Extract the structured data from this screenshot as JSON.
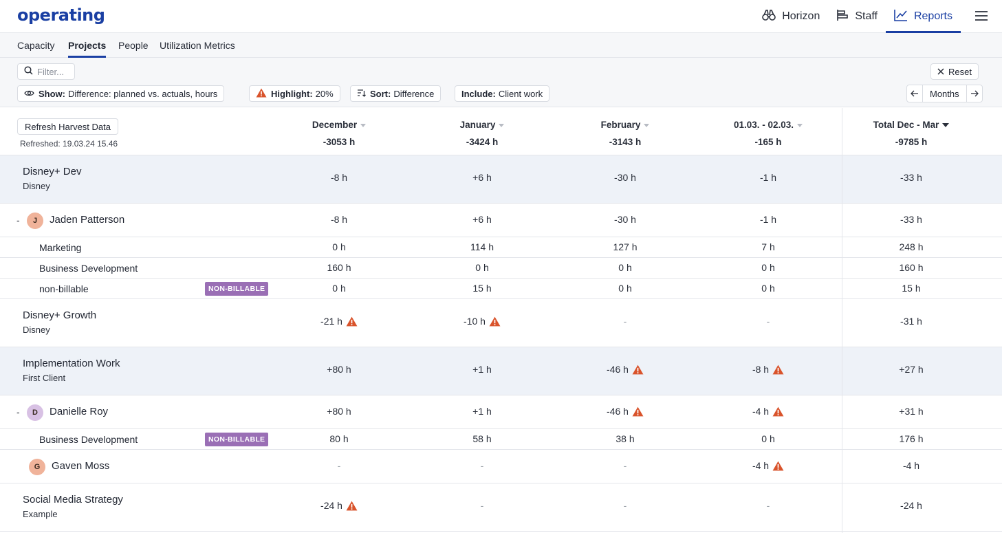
{
  "app": {
    "logo": "operating"
  },
  "topnav": [
    {
      "label": "Horizon",
      "icon": "binoculars-icon",
      "active": false
    },
    {
      "label": "Staff",
      "icon": "staff-icon",
      "active": false
    },
    {
      "label": "Reports",
      "icon": "line-chart-icon",
      "active": true
    }
  ],
  "subtabs": [
    {
      "label": "Capacity",
      "active": false
    },
    {
      "label": "Projects",
      "active": true
    },
    {
      "label": "People",
      "active": false
    },
    {
      "label": "Utilization Metrics",
      "active": false
    }
  ],
  "filters": {
    "search_placeholder": "Filter...",
    "reset_label": "Reset",
    "show_key": "Show:",
    "show_value": "Difference: planned vs. actuals, hours",
    "highlight_key": "Highlight:",
    "highlight_value": "20%",
    "sort_key": "Sort:",
    "sort_value": "Difference",
    "include_key": "Include:",
    "include_value": "Client work",
    "period_label": "Months"
  },
  "table": {
    "refresh_label": "Refresh Harvest Data",
    "refreshed_text": "Refreshed: 19.03.24 15.46",
    "columns": [
      {
        "label": "December",
        "total": "-3053 h"
      },
      {
        "label": "January",
        "total": "-3424 h"
      },
      {
        "label": "February",
        "total": "-3143 h"
      },
      {
        "label": "01.03. - 02.03.",
        "total": "-165 h"
      },
      {
        "label": "Total Dec - Mar",
        "total": "-9785 h"
      }
    ],
    "rows": [
      {
        "type": "project",
        "name": "Disney+ Dev",
        "client": "Disney",
        "values": [
          "-8 h",
          "+6 h",
          "-30 h",
          "-1 h",
          "-33 h"
        ],
        "warn": [
          false,
          false,
          false,
          false,
          false
        ]
      },
      {
        "type": "person",
        "name": "Jaden Patterson",
        "initial": "J",
        "values": [
          "-8 h",
          "+6 h",
          "-30 h",
          "-1 h",
          "-33 h"
        ],
        "warn": [
          false,
          false,
          false,
          false,
          false
        ]
      },
      {
        "type": "sub",
        "name": "Marketing",
        "badge": "",
        "values": [
          "0 h",
          "114 h",
          "127 h",
          "7 h",
          "248 h"
        ]
      },
      {
        "type": "sub",
        "name": "Business Development",
        "badge": "",
        "values": [
          "160 h",
          "0 h",
          "0 h",
          "0 h",
          "160 h"
        ]
      },
      {
        "type": "sub",
        "name": "non-billable",
        "badge": "NON-BILLABLE",
        "values": [
          "0 h",
          "15 h",
          "0 h",
          "0 h",
          "15 h"
        ]
      },
      {
        "type": "project",
        "name": "Disney+ Growth",
        "client": "Disney",
        "values": [
          "-21 h",
          "-10 h",
          "-",
          "-",
          "-31 h"
        ],
        "warn": [
          true,
          true,
          false,
          false,
          false
        ]
      },
      {
        "type": "project",
        "name": "Implementation Work",
        "client": "First Client",
        "values": [
          "+80 h",
          "+1 h",
          "-46 h",
          "-8 h",
          "+27 h"
        ],
        "warn": [
          false,
          false,
          true,
          true,
          false
        ]
      },
      {
        "type": "person",
        "name": "Danielle Roy",
        "initial": "D",
        "values": [
          "+80 h",
          "+1 h",
          "-46 h",
          "-4 h",
          "+31 h"
        ],
        "warn": [
          false,
          false,
          true,
          true,
          false
        ]
      },
      {
        "type": "sub",
        "name": "Business Development",
        "badge": "NON-BILLABLE",
        "values": [
          "80 h",
          "58 h",
          "38 h",
          "0 h",
          "176 h"
        ]
      },
      {
        "type": "person",
        "name": "Gaven Moss",
        "initial": "G",
        "values": [
          "-",
          "-",
          "-",
          "-4 h",
          "-4 h"
        ],
        "warn": [
          false,
          false,
          false,
          true,
          false
        ]
      },
      {
        "type": "project",
        "name": "Social Media Strategy",
        "client": "Example",
        "values": [
          "-24 h",
          "-",
          "-",
          "-",
          "-24 h"
        ],
        "warn": [
          true,
          false,
          false,
          false,
          false
        ]
      }
    ]
  },
  "colors": {
    "accent": "#1a3fa3",
    "warning": "#d9532b",
    "badge": "#9a6fb5",
    "row_highlight": "#eef2f8"
  }
}
